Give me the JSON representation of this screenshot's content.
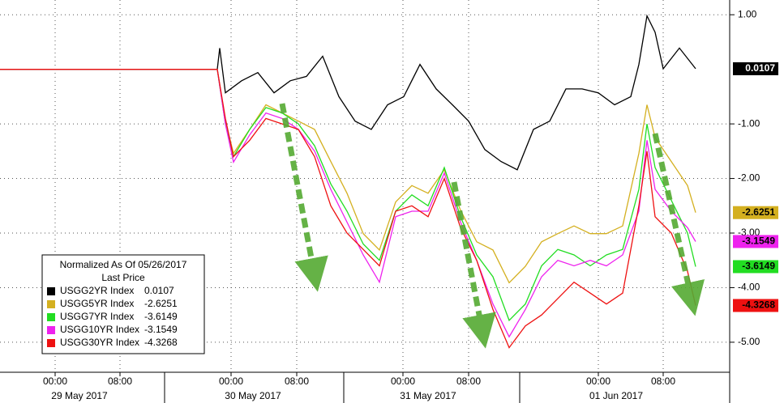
{
  "chart_data": {
    "type": "line",
    "xlim": [
      -6.8,
      83.2
    ],
    "ylim": [
      1.27,
      -5.55
    ],
    "xticks": [
      {
        "value": 0,
        "label": "00:00"
      },
      {
        "value": 8,
        "label": "08:00"
      },
      {
        "value": 21.7,
        "label": "00:00"
      },
      {
        "value": 29.8,
        "label": "08:00"
      },
      {
        "value": 42.9,
        "label": "00:00"
      },
      {
        "value": 51,
        "label": "08:00"
      },
      {
        "value": 67,
        "label": "00:00"
      },
      {
        "value": 75,
        "label": "08:00"
      }
    ],
    "date_labels": [
      {
        "value": 3,
        "label": "29 May 2017"
      },
      {
        "value": 24.4,
        "label": "30 May 2017"
      },
      {
        "value": 46,
        "label": "31 May 2017"
      },
      {
        "value": 69.2,
        "label": "01 Jun 2017"
      }
    ],
    "yticks": [
      {
        "value": 1,
        "label": "1.00"
      },
      {
        "value": -1,
        "label": "-1.00"
      },
      {
        "value": -2,
        "label": "-2.00"
      },
      {
        "value": -3,
        "label": "-3.00"
      },
      {
        "value": -4,
        "label": "-4.00"
      },
      {
        "value": -5,
        "label": "-5.00"
      }
    ],
    "legend_title": "Normalized As Of 05/26/2017",
    "legend_subtitle": "Last Price",
    "series": [
      {
        "name": "USGG2YR Index",
        "color": "#000000",
        "last": 0.0107,
        "x": [
          -6.8,
          20,
          20.3,
          21,
          23,
          25,
          27,
          29,
          31,
          33,
          35,
          37,
          39,
          41,
          43,
          45,
          47,
          49,
          51,
          53,
          55,
          57,
          59,
          61,
          63,
          65,
          67,
          69,
          71,
          72,
          73,
          74,
          75,
          77,
          79
        ],
        "values": [
          0,
          0,
          0.39,
          -0.43,
          -0.21,
          -0.06,
          -0.43,
          -0.21,
          -0.13,
          0.24,
          -0.5,
          -0.95,
          -1.1,
          -0.65,
          -0.5,
          0.09,
          -0.36,
          -0.65,
          -0.95,
          -1.47,
          -1.69,
          -1.84,
          -1.1,
          -0.95,
          -0.36,
          -0.36,
          -0.43,
          -0.65,
          -0.5,
          0.09,
          0.98,
          0.68,
          0.01,
          0.39,
          0.0107
        ]
      },
      {
        "name": "USGG5YR Index",
        "color": "#d4b020",
        "last": -2.6251,
        "x": [
          20,
          21,
          22,
          24,
          26,
          28,
          30,
          32,
          34,
          36,
          38,
          40,
          42,
          44,
          46,
          48,
          50,
          52,
          54,
          56,
          58,
          60,
          62,
          64,
          66,
          68,
          70,
          72,
          73,
          74,
          76,
          78,
          79
        ],
        "values": [
          0,
          -0.95,
          -1.54,
          -1.1,
          -0.65,
          -0.8,
          -0.95,
          -1.1,
          -1.69,
          -2.27,
          -3.01,
          -3.31,
          -2.43,
          -2.13,
          -2.27,
          -1.84,
          -2.58,
          -3.16,
          -3.31,
          -3.91,
          -3.61,
          -3.16,
          -3.01,
          -2.87,
          -3.01,
          -3.01,
          -2.87,
          -1.54,
          -0.65,
          -1.25,
          -1.69,
          -2.13,
          -2.6251
        ]
      },
      {
        "name": "USGG7YR Index",
        "color": "#22dd22",
        "last": -3.6149,
        "x": [
          20,
          21,
          22,
          24,
          26,
          28,
          30,
          32,
          34,
          36,
          38,
          40,
          42,
          44,
          46,
          48,
          50,
          52,
          54,
          56,
          58,
          60,
          62,
          64,
          66,
          68,
          70,
          72,
          73,
          74,
          76,
          78,
          79
        ],
        "values": [
          0,
          -1.0,
          -1.6,
          -1.1,
          -0.7,
          -0.8,
          -1.0,
          -1.4,
          -2.1,
          -2.6,
          -3.2,
          -3.5,
          -2.6,
          -2.3,
          -2.5,
          -1.8,
          -2.7,
          -3.4,
          -3.8,
          -4.6,
          -4.3,
          -3.6,
          -3.3,
          -3.4,
          -3.6,
          -3.4,
          -3.3,
          -2.2,
          -1.0,
          -1.8,
          -2.4,
          -3.0,
          -3.6149
        ]
      },
      {
        "name": "USGG10YR Index",
        "color": "#ee22ee",
        "last": -3.1549,
        "x": [
          20,
          21,
          22,
          24,
          26,
          28,
          30,
          32,
          34,
          36,
          38,
          40,
          42,
          44,
          46,
          48,
          50,
          52,
          54,
          56,
          58,
          60,
          62,
          64,
          66,
          68,
          70,
          72,
          73,
          74,
          76,
          78,
          79
        ],
        "values": [
          0,
          -1.0,
          -1.7,
          -1.2,
          -0.8,
          -0.9,
          -1.1,
          -1.5,
          -2.2,
          -2.8,
          -3.4,
          -3.9,
          -2.7,
          -2.6,
          -2.6,
          -1.9,
          -2.8,
          -3.5,
          -4.3,
          -4.9,
          -4.4,
          -3.8,
          -3.5,
          -3.6,
          -3.5,
          -3.6,
          -3.4,
          -2.6,
          -1.3,
          -2.2,
          -2.6,
          -2.9,
          -3.1549
        ]
      },
      {
        "name": "USGG30YR Index",
        "color": "#ee1111",
        "last": -4.3268,
        "x": [
          -6.8,
          20,
          21,
          22,
          24,
          26,
          28,
          30,
          32,
          34,
          36,
          38,
          40,
          42,
          44,
          46,
          48,
          50,
          52,
          54,
          56,
          58,
          60,
          62,
          64,
          66,
          68,
          70,
          72,
          73,
          74,
          76,
          78,
          79
        ],
        "values": [
          0,
          0,
          -0.9,
          -1.6,
          -1.3,
          -0.9,
          -1.0,
          -1.1,
          -1.6,
          -2.5,
          -3.0,
          -3.3,
          -3.6,
          -2.6,
          -2.5,
          -2.7,
          -2.0,
          -2.9,
          -3.5,
          -4.4,
          -5.1,
          -4.7,
          -4.5,
          -4.2,
          -3.9,
          -4.1,
          -4.3,
          -4.1,
          -2.5,
          -1.5,
          -2.7,
          -3.0,
          -3.7,
          -4.3268
        ]
      }
    ]
  }
}
